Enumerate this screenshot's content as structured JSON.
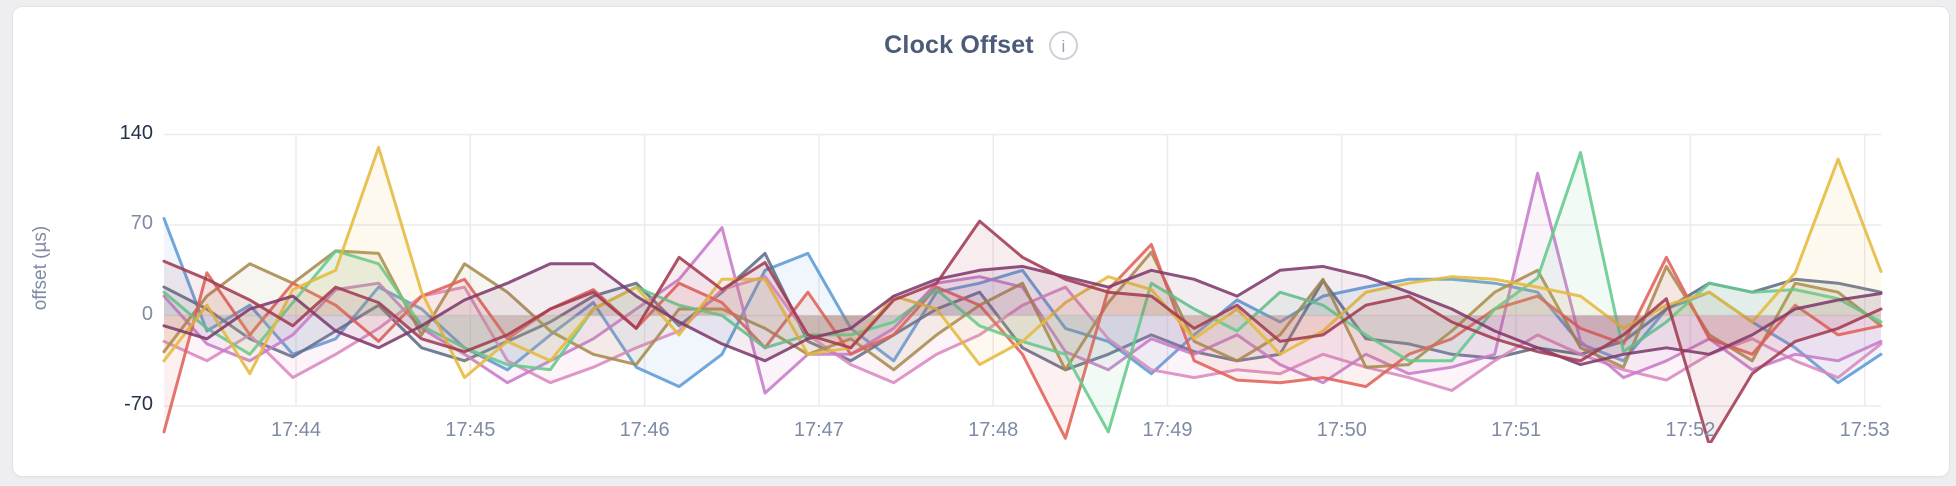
{
  "header": {
    "title": "Clock Offset",
    "info_icon": "i"
  },
  "chart_data": {
    "type": "line",
    "title": "Clock Offset",
    "xlabel": "",
    "ylabel": "offset (µs)",
    "y_ticks": [
      140,
      70,
      0,
      -70
    ],
    "y_extreme_ticks": [
      140,
      -70
    ],
    "ylim": [
      -70,
      140
    ],
    "x_tick_labels": [
      "17:44",
      "17:45",
      "17:46",
      "17:47",
      "17:48",
      "17:49",
      "17:50",
      "17:51",
      "17:52",
      "17:53"
    ],
    "x_start": "17:43:12",
    "x_end": "17:53:03",
    "grid": true,
    "legend": "none",
    "line_width": 3,
    "area_fill_opacity": 0.09,
    "series": [
      {
        "name": "blue",
        "color": "#5C9BD5",
        "values": [
          75,
          -12,
          8,
          -30,
          -18,
          22,
          5,
          -25,
          -42,
          -15,
          10,
          -40,
          -55,
          -30,
          35,
          48,
          -10,
          -35,
          18,
          25,
          35,
          -10,
          -20,
          -45,
          -15,
          12,
          -5,
          15,
          22,
          28,
          28,
          25,
          18,
          -22,
          -35,
          5,
          18,
          -5,
          -25,
          -52,
          -30
        ]
      },
      {
        "name": "slate",
        "color": "#5E6C87",
        "values": [
          22,
          5,
          -18,
          -32,
          -12,
          8,
          -25,
          -35,
          -20,
          -5,
          15,
          25,
          -8,
          18,
          48,
          -20,
          -35,
          -15,
          5,
          18,
          -25,
          -42,
          -30,
          -15,
          -28,
          -35,
          -30,
          27,
          -18,
          -22,
          -30,
          -33,
          -25,
          -30,
          -20,
          5,
          25,
          18,
          28,
          25,
          18
        ]
      },
      {
        "name": "pink",
        "color": "#D989BE",
        "values": [
          -20,
          -35,
          -15,
          -48,
          -30,
          -10,
          15,
          22,
          -35,
          -52,
          -40,
          -25,
          -12,
          20,
          30,
          -15,
          -38,
          -52,
          -30,
          -15,
          8,
          22,
          -18,
          -42,
          -48,
          -42,
          -45,
          -30,
          -40,
          -48,
          -58,
          -35,
          -15,
          -30,
          -42,
          -50,
          -30,
          -18,
          -35,
          -48,
          -22
        ]
      },
      {
        "name": "orchid",
        "color": "#C77BC8",
        "values": [
          15,
          -22,
          -35,
          -15,
          20,
          25,
          -10,
          -30,
          -52,
          -35,
          -18,
          5,
          28,
          68,
          -60,
          -30,
          -30,
          -10,
          25,
          30,
          22,
          -28,
          -42,
          -18,
          -30,
          -15,
          -38,
          -52,
          -30,
          -45,
          -40,
          -30,
          110,
          -20,
          -48,
          -35,
          -18,
          -42,
          -30,
          -35,
          -20
        ]
      },
      {
        "name": "khaki",
        "color": "#A78B4F",
        "values": [
          -28,
          15,
          40,
          25,
          50,
          48,
          -15,
          40,
          18,
          -12,
          -30,
          -38,
          5,
          5,
          -10,
          -30,
          -18,
          -42,
          -15,
          8,
          25,
          -42,
          10,
          49,
          -20,
          -35,
          -15,
          28,
          -40,
          -38,
          -12,
          18,
          35,
          -25,
          -40,
          38,
          -15,
          -35,
          25,
          18,
          -8
        ]
      },
      {
        "name": "salmon",
        "color": "#E06158",
        "values": [
          -90,
          33,
          -15,
          25,
          8,
          -20,
          15,
          28,
          -18,
          5,
          20,
          -10,
          25,
          10,
          -25,
          18,
          -30,
          -15,
          22,
          8,
          -30,
          -95,
          20,
          55,
          -35,
          -50,
          -52,
          -48,
          -55,
          -30,
          -18,
          5,
          15,
          -10,
          -22,
          45,
          -18,
          -30,
          8,
          -15,
          -8
        ]
      },
      {
        "name": "green",
        "color": "#63C98C",
        "values": [
          18,
          -10,
          -30,
          10,
          50,
          40,
          -8,
          -25,
          -38,
          -42,
          5,
          22,
          8,
          0,
          -25,
          -15,
          -15,
          -5,
          20,
          -8,
          -20,
          -30,
          -90,
          25,
          5,
          -12,
          18,
          8,
          -15,
          -35,
          -35,
          5,
          29,
          126,
          -28,
          -5,
          25,
          18,
          20,
          13,
          -5
        ]
      },
      {
        "name": "yellow",
        "color": "#E5B93E",
        "values": [
          -35,
          8,
          -45,
          20,
          35,
          130,
          18,
          -48,
          -20,
          -35,
          5,
          22,
          -15,
          28,
          28,
          -30,
          -25,
          15,
          5,
          -38,
          -20,
          10,
          30,
          20,
          -18,
          5,
          -30,
          -12,
          18,
          25,
          30,
          28,
          22,
          15,
          -10,
          8,
          18,
          -5,
          33,
          121,
          34
        ]
      },
      {
        "name": "plum",
        "color": "#7E3A6E",
        "values": [
          -8,
          -18,
          5,
          15,
          -12,
          -25,
          -8,
          12,
          25,
          40,
          40,
          15,
          -5,
          -22,
          -35,
          -18,
          -10,
          15,
          28,
          35,
          38,
          30,
          22,
          35,
          28,
          15,
          35,
          38,
          30,
          18,
          5,
          -12,
          -25,
          -38,
          -30,
          -25,
          -30,
          -15,
          5,
          12,
          17
        ]
      },
      {
        "name": "maroon",
        "color": "#A23B52",
        "values": [
          42,
          28,
          12,
          -8,
          22,
          10,
          -18,
          -28,
          -15,
          5,
          18,
          -10,
          45,
          20,
          41,
          -15,
          -25,
          12,
          25,
          73,
          45,
          28,
          18,
          15,
          -10,
          8,
          -20,
          -15,
          8,
          15,
          -5,
          -18,
          -28,
          -35,
          -15,
          13,
          -100,
          -45,
          -20,
          -10,
          5
        ]
      }
    ],
    "grid_color": "#ebebee",
    "annotations": []
  }
}
